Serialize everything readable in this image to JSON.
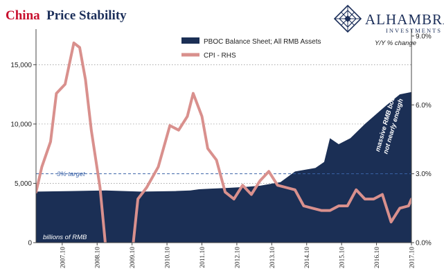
{
  "title": {
    "highlight": "China",
    "rest": "Price Stability"
  },
  "brand": {
    "name": "ALHAMBRA",
    "tagline": "INVESTMENTS",
    "logo_icon": "lattice-diamond-icon",
    "color": "#1c2f5a"
  },
  "colors": {
    "balance_sheet": "#1b2f55",
    "cpi": "#d9908d",
    "target_line": "#3b63a8",
    "title_accent": "#c8102e"
  },
  "chart_data": {
    "type": "area",
    "x_tick_labels": [
      "2007.10",
      "2008.10",
      "2009.10",
      "2010.10",
      "2011.10",
      "2012.10",
      "2013.10",
      "2014.10",
      "2015.10",
      "2016.10",
      "2017.10"
    ],
    "x_range": [
      "2007-01",
      "2017-10"
    ],
    "left_axis": {
      "ticks": [
        "0",
        "5,000",
        "10,000",
        "15,000"
      ],
      "ylim": [
        0,
        18000
      ]
    },
    "right_axis": {
      "title": "Y/Y % change",
      "ticks": [
        "0.0%",
        "3.0%",
        "6.0%",
        "9.0%"
      ],
      "ylim": [
        0,
        9.3
      ]
    },
    "series": [
      {
        "name": "PBOC Balance Sheet; All RMB Assets",
        "kind": "area",
        "axis": "left",
        "x": [
          "2007-01",
          "2008-01",
          "2009-01",
          "2010-01",
          "2011-01",
          "2011-06",
          "2011-09",
          "2012-01",
          "2012-06",
          "2013-01",
          "2013-06",
          "2014-01",
          "2014-06",
          "2015-01",
          "2015-04",
          "2015-06",
          "2015-09",
          "2016-01",
          "2016-06",
          "2017-01",
          "2017-06",
          "2017-10"
        ],
        "values": [
          4300,
          4350,
          4400,
          4300,
          4350,
          4400,
          4500,
          4550,
          4600,
          4700,
          4800,
          5100,
          6000,
          6300,
          6800,
          8800,
          8300,
          8800,
          10000,
          11500,
          12500,
          12700
        ]
      },
      {
        "name": "CPI - RHS",
        "kind": "line",
        "axis": "right",
        "x": [
          "2007-01",
          "2007-03",
          "2007-06",
          "2007-08",
          "2007-11",
          "2008-02",
          "2008-04",
          "2008-06",
          "2008-08",
          "2008-11",
          "2009-02",
          "2009-05",
          "2009-07",
          "2009-10",
          "2009-12",
          "2010-03",
          "2010-07",
          "2010-11",
          "2011-02",
          "2011-05",
          "2011-07",
          "2011-10",
          "2011-12",
          "2012-03",
          "2012-06",
          "2012-09",
          "2012-12",
          "2013-03",
          "2013-06",
          "2013-09",
          "2013-12",
          "2014-03",
          "2014-06",
          "2014-09",
          "2014-12",
          "2015-03",
          "2015-06",
          "2015-09",
          "2015-12",
          "2016-03",
          "2016-06",
          "2016-09",
          "2016-12",
          "2017-03",
          "2017-06",
          "2017-09",
          "2017-10"
        ],
        "values": [
          2.2,
          3.3,
          4.4,
          6.5,
          6.9,
          8.7,
          8.5,
          7.1,
          4.9,
          2.4,
          -1.6,
          -1.4,
          -1.8,
          -0.5,
          1.9,
          2.4,
          3.3,
          5.1,
          4.9,
          5.5,
          6.5,
          5.5,
          4.1,
          3.6,
          2.2,
          1.9,
          2.5,
          2.1,
          2.7,
          3.1,
          2.5,
          2.4,
          2.3,
          1.6,
          1.5,
          1.4,
          1.4,
          1.6,
          1.6,
          2.3,
          1.9,
          1.9,
          2.1,
          0.9,
          1.5,
          1.6,
          1.9
        ]
      }
    ],
    "reference_line": {
      "label": "3% target",
      "axis": "right",
      "value": 3.0,
      "style": "dashed"
    },
    "annotations": {
      "bottom_left": "billions of RMB",
      "right_note_line1": "massive RMB boost",
      "right_note_line2": "not nearly enough"
    },
    "legend": {
      "placement": "top-center"
    },
    "grid": "horizontal-dotted"
  }
}
